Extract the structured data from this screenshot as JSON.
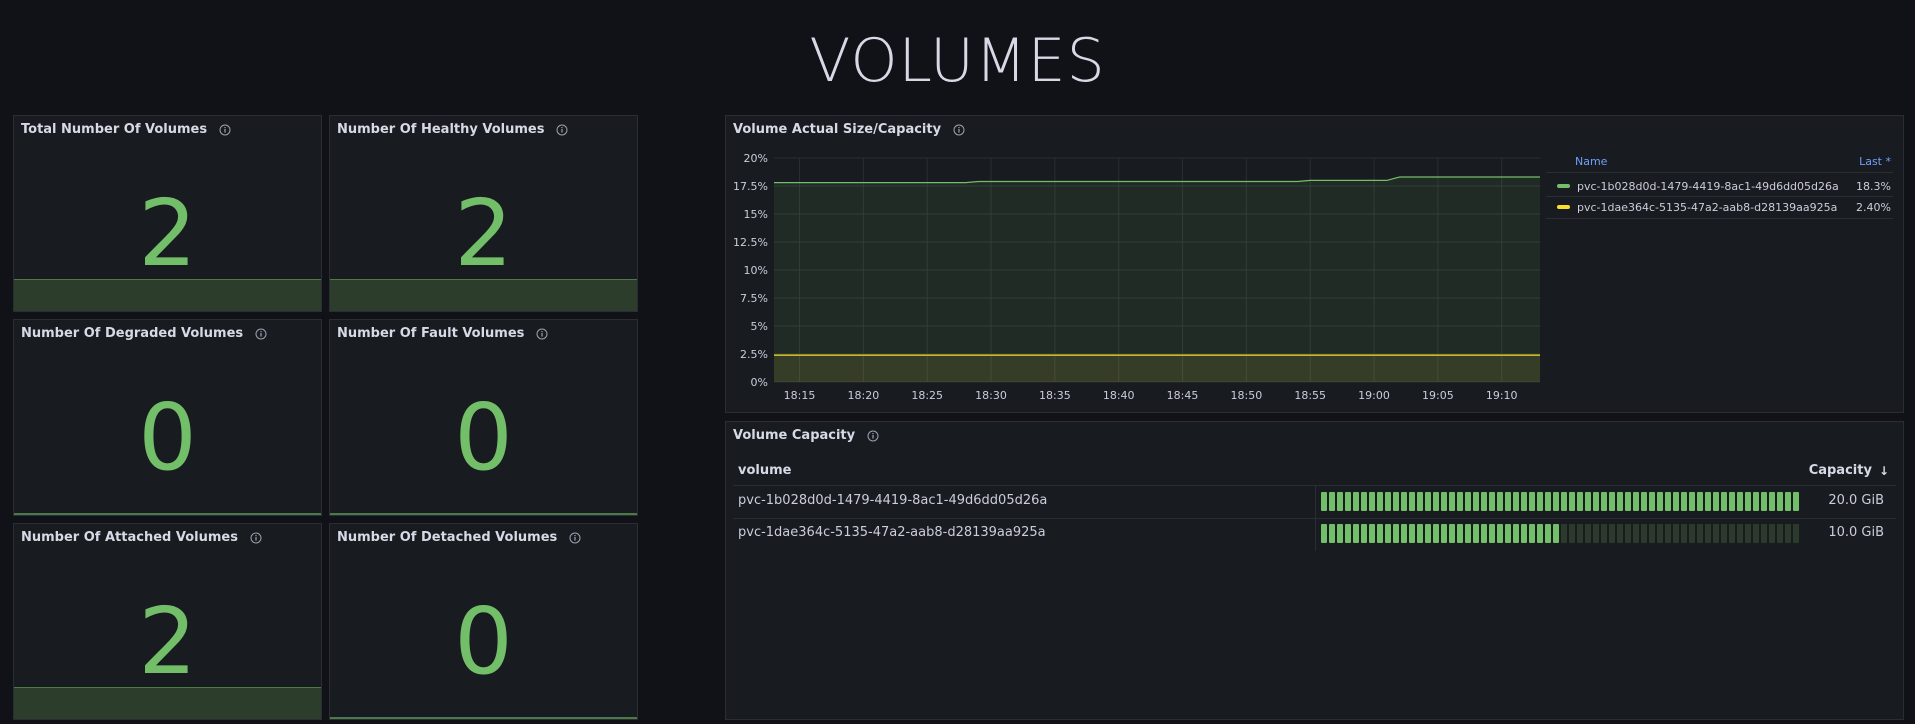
{
  "title": "VOLUMES",
  "stats": [
    {
      "title": "Total Number Of Volumes",
      "value": "2"
    },
    {
      "title": "Number Of Healthy Volumes",
      "value": "2"
    },
    {
      "title": "Number Of Degraded Volumes",
      "value": "0"
    },
    {
      "title": "Number Of Fault Volumes",
      "value": "0"
    },
    {
      "title": "Number Of Attached Volumes",
      "value": "2"
    },
    {
      "title": "Number Of Detached Volumes",
      "value": "0"
    }
  ],
  "timeseries": {
    "title": "Volume Actual Size/Capacity",
    "legend": {
      "name_header": "Name",
      "last_header": "Last *",
      "rows": [
        {
          "name": "pvc-1b028d0d-1479-4419-8ac1-49d6dd05d26a",
          "last": "18.3%",
          "color": "#73bf69"
        },
        {
          "name": "pvc-1dae364c-5135-47a2-aab8-d28139aa925a",
          "last": "2.40%",
          "color": "#fade2a"
        }
      ]
    }
  },
  "chart_data": {
    "type": "area",
    "title": "Volume Actual Size/Capacity",
    "xlabel": "",
    "ylabel": "",
    "x": [
      "18:15",
      "18:20",
      "18:25",
      "18:30",
      "18:35",
      "18:40",
      "18:45",
      "18:50",
      "18:55",
      "19:00",
      "19:05",
      "19:10"
    ],
    "ylim": [
      0,
      20
    ],
    "y_ticks": [
      "0%",
      "2.5%",
      "5%",
      "7.5%",
      "10%",
      "12.5%",
      "15%",
      "17.5%",
      "20%"
    ],
    "grid": true,
    "legend": "right",
    "series": [
      {
        "name": "pvc-1b028d0d-1479-4419-8ac1-49d6dd05d26a",
        "color": "#73bf69",
        "points": [
          [
            "18:13",
            17.8
          ],
          [
            "18:28",
            17.8
          ],
          [
            "18:29",
            17.9
          ],
          [
            "18:54",
            17.9
          ],
          [
            "18:55",
            18.0
          ],
          [
            "19:01",
            18.0
          ],
          [
            "19:02",
            18.3
          ],
          [
            "19:13",
            18.3
          ]
        ]
      },
      {
        "name": "pvc-1dae364c-5135-47a2-aab8-d28139aa925a",
        "color": "#fade2a",
        "points": [
          [
            "18:13",
            2.4
          ],
          [
            "19:13",
            2.4
          ]
        ]
      }
    ]
  },
  "table": {
    "title": "Volume Capacity",
    "col_volume": "volume",
    "col_capacity": "Capacity",
    "sort_icon": "arrow-down-icon",
    "rows": [
      {
        "volume": "pvc-1b028d0d-1479-4419-8ac1-49d6dd05d26a",
        "capacity": "20.0 GiB",
        "fraction": 1.0
      },
      {
        "volume": "pvc-1dae364c-5135-47a2-aab8-d28139aa925a",
        "capacity": "10.0 GiB",
        "fraction": 0.5
      }
    ]
  }
}
